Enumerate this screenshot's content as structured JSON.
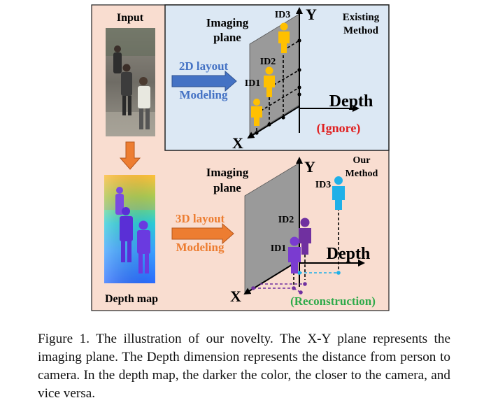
{
  "figure": {
    "input_label": "Input",
    "depth_map_label": "Depth map",
    "existing": {
      "method_label_1": "Existing",
      "method_label_2": "Method",
      "imaging_plane_1": "Imaging",
      "imaging_plane_2": "plane",
      "layout_label": "2D layout",
      "modeling_label": "Modeling",
      "axis_y": "Y",
      "axis_x": "X",
      "axis_depth": "Depth",
      "ignore_label": "(Ignore)",
      "ids": [
        "ID1",
        "ID2",
        "ID3"
      ]
    },
    "ours": {
      "method_label_1": "Our",
      "method_label_2": "Method",
      "imaging_plane_1": "Imaging",
      "imaging_plane_2": "plane",
      "layout_label": "3D layout",
      "modeling_label": "Modeling",
      "axis_y": "Y",
      "axis_x": "X",
      "axis_depth": "Depth",
      "reconstruction_label": "(Reconstruction)",
      "ids": [
        "ID1",
        "ID2",
        "ID3"
      ]
    },
    "colors": {
      "peach_bg": "#f9ddd0",
      "blue_bg": "#dce8f4",
      "plane_gray": "#9a9a9a",
      "blue_arrow": "#4472c4",
      "orange_arrow": "#ed7d31",
      "yellow_person": "#ffc000",
      "purple_person": "#7030a0",
      "cyan_person": "#1fb0e8",
      "ignore_red": "#e02020",
      "reconstruction_green": "#2eaa4a"
    }
  },
  "caption": "Figure 1. The illustration of our novelty. The X-Y plane represents the imaging plane. The Depth dimension represents the distance from person to camera. In the depth map, the darker the color, the closer to the camera, and vice versa."
}
